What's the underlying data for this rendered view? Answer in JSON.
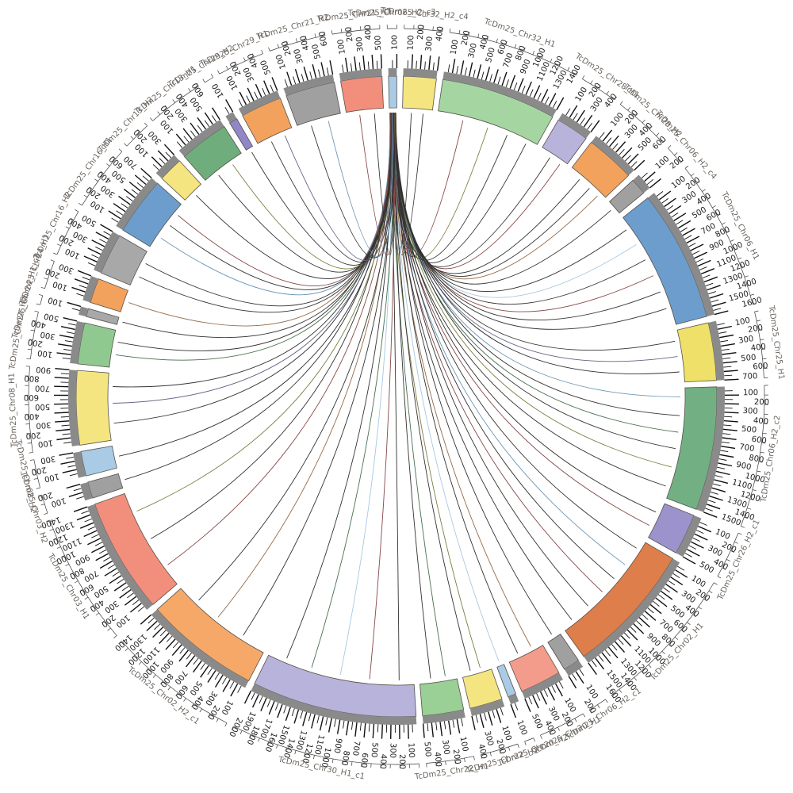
{
  "figure": {
    "kind": "circos-synteny-plot",
    "background": "#ffffff",
    "band_outline": "#55504a",
    "inner_band_color": "#8a8a8a",
    "tick_color": "#111111",
    "name_color": "#6b655f",
    "tick_label_interval": 100
  },
  "chart_data": {
    "type": "circos-chord",
    "tick_interval": 100,
    "segments": [
      {
        "name": "TcDm25_Chr32_H2_c4",
        "color": "#F4E580",
        "units": 4
      },
      {
        "name": "TcDm25_Chr32_H1",
        "color": "#A5D6A2",
        "units": 14
      },
      {
        "name": "TcDm25_Chr28_H1",
        "color": "#B7B3DA",
        "units": 4
      },
      {
        "name": "TcDm25_Chr28_H2",
        "color": "#F2A25C",
        "units": 6
      },
      {
        "name": "TcDm25_Chr06_H2_c4",
        "color": "#A0A0A0",
        "units": 2
      },
      {
        "name": "TcDm25_Chr06_H1",
        "color": "#6C9DCC",
        "units": 16
      },
      {
        "name": "TcDm25_Chr25_H1",
        "color": "#EFE06A",
        "units": 7
      },
      {
        "name": "TcDm25_Chr06_H2_c2",
        "color": "#72B084",
        "units": 15
      },
      {
        "name": "TcDm25_Chr26_H2_c1",
        "color": "#9C93CC",
        "units": 5
      },
      {
        "name": "TcDm25_Chr02_H1",
        "color": "#DE7E4B",
        "units": 16
      },
      {
        "name": "TcDm25_Chr06_H2_c1",
        "color": "#A0A0A0",
        "units": 2
      },
      {
        "name": "TcDm25_Chr20_H1",
        "color": "#F49C8C",
        "units": 5
      },
      {
        "name": "TcDm25_Chr20_H2",
        "color": "#A9CBE5",
        "units": 1
      },
      {
        "name": "TcDm25_Chr22_H2",
        "color": "#F4E580",
        "units": 4
      },
      {
        "name": "TcDm25_Chr22_H1",
        "color": "#9ACF96",
        "units": 5
      },
      {
        "name": "TcDm25_Chr30_H1_c1",
        "color": "#B7B3DA",
        "units": 20
      },
      {
        "name": "TcDm25_Chr02_H2_c1",
        "color": "#F5A868",
        "units": 14
      },
      {
        "name": "TcDm25_Chr03_H1",
        "color": "#F28E7C",
        "units": 14
      },
      {
        "name": "TcDm25_Chr03_H2",
        "color": "#A0A0A0",
        "units": 2
      },
      {
        "name": "TcDm25_Chr08_H2",
        "color": "#A9CBE5",
        "units": 3
      },
      {
        "name": "TcDm25_Chr08_H1",
        "color": "#F4E580",
        "units": 9
      },
      {
        "name": "TcDm25_Chr24_H2",
        "color": "#90C98F",
        "units": 5
      },
      {
        "name": "TcDm25_Chr24_H1_c2",
        "color": "#A8A8A8",
        "units": 1
      },
      {
        "name": "TcDm25_Chr24_H1",
        "color": "#F2A25C",
        "units": 3
      },
      {
        "name": "TcDm25_Chr16_H2",
        "color": "#A8A8A8",
        "units": 5
      },
      {
        "name": "TcDm25_Chr16_H1",
        "color": "#6C9DCC",
        "units": 7
      },
      {
        "name": "TcDm25_Chr13_H2",
        "color": "#F4E580",
        "units": 3
      },
      {
        "name": "TcDm25_Chr13_H1",
        "color": "#6FAE7C",
        "units": 6
      },
      {
        "name": "TcDm25_Chr29_H2",
        "color": "#9186C6",
        "units": 1
      },
      {
        "name": "TcDm25_Chr29_H1",
        "color": "#F2A25C",
        "units": 5
      },
      {
        "name": "TcDm25_Chr21_H2",
        "color": "#A0A0A0",
        "units": 6
      },
      {
        "name": "TcDm25_Chr21_H1",
        "color": "#F28E7C",
        "units": 5
      },
      {
        "name": "TcDm25_Chr06_H2_c3",
        "color": "#A9CBE5",
        "units": 1
      }
    ],
    "hub_segment": "TcDm25_Chr06_H2_c3",
    "link_colors": {
      "k": "#1c1c1c",
      "m": "#7B3434",
      "o": "#70702C",
      "b": "#5F8CAD",
      "g": "#33613B",
      "s": "#8A5A33",
      "v": "#55557A",
      "lb": "#9DC3DE"
    },
    "links": [
      [
        1,
        0.3,
        "k"
      ],
      [
        1,
        0.7,
        "k"
      ],
      [
        2,
        0.25,
        "m"
      ],
      [
        2,
        0.5,
        "o"
      ],
      [
        2,
        0.7,
        "k"
      ],
      [
        2,
        0.9,
        "k"
      ],
      [
        3,
        0.4,
        "k"
      ],
      [
        3,
        0.8,
        "m"
      ],
      [
        4,
        0.3,
        "k"
      ],
      [
        4,
        0.6,
        "k"
      ],
      [
        4,
        0.85,
        "s"
      ],
      [
        5,
        0.5,
        "k"
      ],
      [
        6,
        0.1,
        "k"
      ],
      [
        6,
        0.25,
        "lb"
      ],
      [
        6,
        0.4,
        "k"
      ],
      [
        6,
        0.55,
        "m"
      ],
      [
        6,
        0.7,
        "k"
      ],
      [
        6,
        0.85,
        "k"
      ],
      [
        7,
        0.2,
        "k"
      ],
      [
        7,
        0.5,
        "v"
      ],
      [
        7,
        0.8,
        "k"
      ],
      [
        8,
        0.08,
        "b"
      ],
      [
        8,
        0.25,
        "k"
      ],
      [
        8,
        0.4,
        "g"
      ],
      [
        8,
        0.55,
        "k"
      ],
      [
        8,
        0.72,
        "o"
      ],
      [
        8,
        0.9,
        "k"
      ],
      [
        9,
        0.3,
        "k"
      ],
      [
        9,
        0.7,
        "m"
      ],
      [
        10,
        0.08,
        "k"
      ],
      [
        10,
        0.25,
        "b"
      ],
      [
        10,
        0.4,
        "k"
      ],
      [
        10,
        0.55,
        "m"
      ],
      [
        10,
        0.72,
        "k"
      ],
      [
        10,
        0.9,
        "k"
      ],
      [
        11,
        0.5,
        "k"
      ],
      [
        12,
        0.3,
        "s"
      ],
      [
        12,
        0.7,
        "k"
      ],
      [
        13,
        0.5,
        "lb"
      ],
      [
        14,
        0.35,
        "o"
      ],
      [
        14,
        0.7,
        "k"
      ],
      [
        15,
        0.3,
        "g"
      ],
      [
        15,
        0.7,
        "k"
      ],
      [
        16,
        0.1,
        "k"
      ],
      [
        16,
        0.3,
        "m"
      ],
      [
        16,
        0.5,
        "lb"
      ],
      [
        16,
        0.7,
        "g"
      ],
      [
        16,
        0.88,
        "k"
      ],
      [
        17,
        0.25,
        "k"
      ],
      [
        17,
        0.55,
        "s"
      ],
      [
        17,
        0.8,
        "k"
      ],
      [
        18,
        0.2,
        "m"
      ],
      [
        18,
        0.5,
        "k"
      ],
      [
        18,
        0.8,
        "o"
      ],
      [
        19,
        0.5,
        "k"
      ],
      [
        20,
        0.5,
        "k"
      ],
      [
        21,
        0.25,
        "k"
      ],
      [
        21,
        0.55,
        "v"
      ],
      [
        21,
        0.8,
        "k"
      ],
      [
        22,
        0.35,
        "g"
      ],
      [
        22,
        0.7,
        "k"
      ],
      [
        23,
        0.5,
        "k"
      ],
      [
        24,
        0.5,
        "s"
      ],
      [
        25,
        0.3,
        "k"
      ],
      [
        25,
        0.7,
        "k"
      ],
      [
        26,
        0.25,
        "b"
      ],
      [
        26,
        0.55,
        "k"
      ],
      [
        26,
        0.8,
        "m"
      ],
      [
        27,
        0.5,
        "k"
      ],
      [
        28,
        0.3,
        "k"
      ],
      [
        28,
        0.7,
        "o"
      ],
      [
        29,
        0.5,
        "k"
      ],
      [
        30,
        0.35,
        "k"
      ],
      [
        30,
        0.75,
        "v"
      ],
      [
        31,
        0.3,
        "k"
      ],
      [
        31,
        0.7,
        "b"
      ],
      [
        32,
        0.35,
        "m"
      ],
      [
        32,
        0.75,
        "k"
      ]
    ]
  }
}
